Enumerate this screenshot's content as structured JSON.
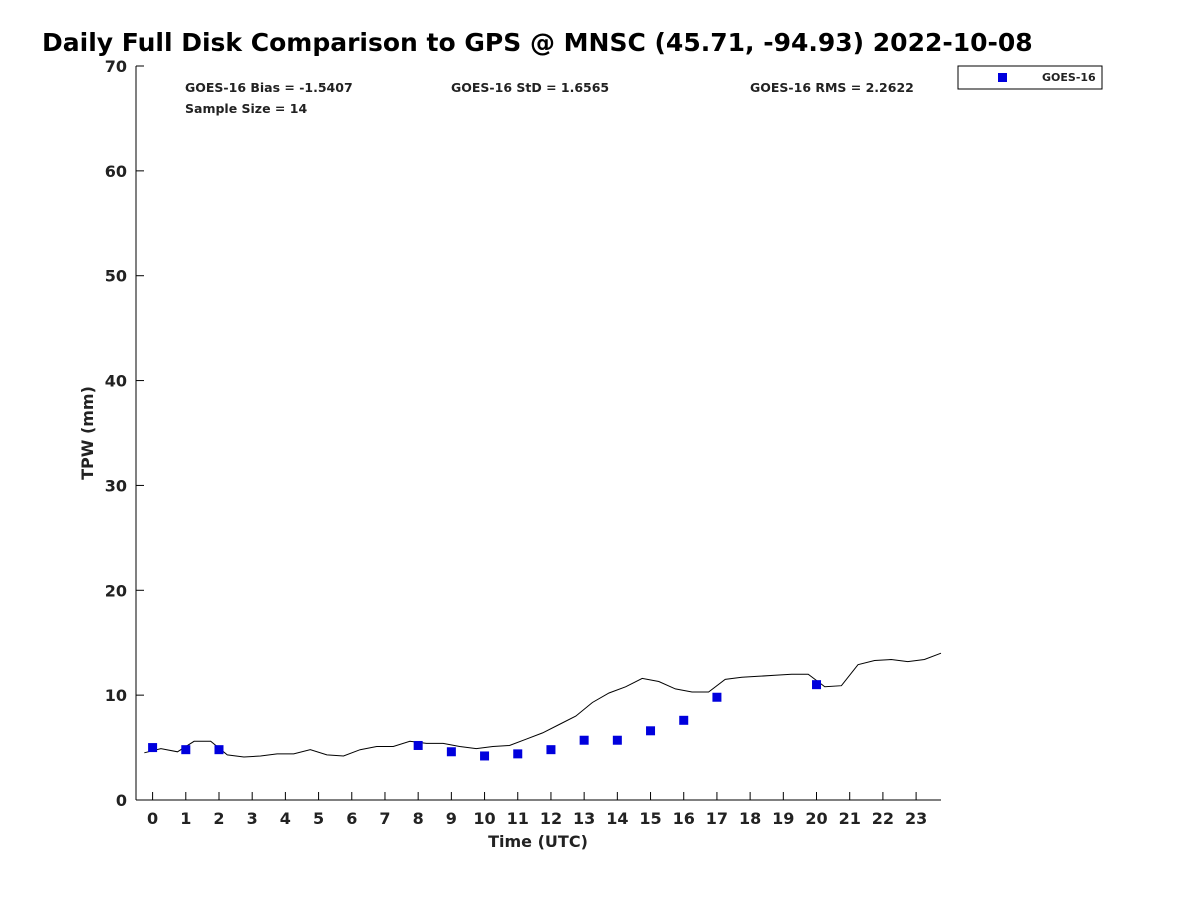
{
  "chart_data": {
    "type": "scatter",
    "title": "Daily Full Disk Comparison to GPS @ MNSC (45.71, -94.93) 2022-10-08",
    "xlabel": "Time (UTC)",
    "ylabel": "TPW (mm)",
    "xlim": [
      -0.5,
      23.75
    ],
    "ylim": [
      0,
      70
    ],
    "xticks": [
      0,
      1,
      2,
      3,
      4,
      5,
      6,
      7,
      8,
      9,
      10,
      11,
      12,
      13,
      14,
      15,
      16,
      17,
      18,
      19,
      20,
      21,
      22,
      23
    ],
    "yticks": [
      0,
      10,
      20,
      30,
      40,
      50,
      60,
      70
    ],
    "stats": {
      "bias": "GOES-16 Bias = -1.5407",
      "std": "GOES-16 StD = 1.6565",
      "rms": "GOES-16 RMS = 2.2622",
      "sample": "Sample Size = 14"
    },
    "legend": {
      "label": "GOES-16",
      "color": "#0000dd",
      "position": "top-right"
    },
    "series": [
      {
        "name": "GOES-16",
        "style": "markers",
        "color": "#0000dd",
        "x": [
          0,
          1,
          2,
          8,
          9,
          10,
          11,
          12,
          13,
          14,
          15,
          16,
          17,
          20
        ],
        "y": [
          5.0,
          4.8,
          4.8,
          5.2,
          4.6,
          4.2,
          4.4,
          4.8,
          5.7,
          5.7,
          6.6,
          7.6,
          9.8,
          11.0
        ]
      },
      {
        "name": "GPS",
        "style": "line",
        "color": "#000000",
        "x": [
          -0.25,
          0.25,
          0.75,
          1.25,
          1.75,
          2.25,
          2.75,
          3.25,
          3.75,
          4.25,
          4.75,
          5.25,
          5.75,
          6.25,
          6.75,
          7.25,
          7.75,
          8.25,
          8.75,
          9.25,
          9.75,
          10.25,
          10.75,
          11.25,
          11.75,
          12.25,
          12.75,
          13.25,
          13.75,
          14.25,
          14.75,
          15.25,
          15.75,
          16.25,
          16.75,
          17.25,
          17.75,
          18.25,
          18.75,
          19.25,
          19.75,
          20.25,
          20.75,
          21.25,
          21.75,
          22.25,
          22.75,
          23.25,
          23.75
        ],
        "y": [
          4.5,
          4.9,
          4.6,
          5.6,
          5.6,
          4.3,
          4.1,
          4.2,
          4.4,
          4.4,
          4.8,
          4.3,
          4.2,
          4.8,
          5.1,
          5.1,
          5.6,
          5.4,
          5.4,
          5.1,
          4.9,
          5.1,
          5.2,
          5.8,
          6.4,
          7.2,
          8.0,
          9.3,
          10.2,
          10.8,
          11.6,
          11.3,
          10.6,
          10.3,
          10.3,
          11.5,
          11.7,
          11.8,
          11.9,
          12.0,
          12.0,
          10.8,
          10.9,
          12.9,
          13.3,
          13.4,
          13.2,
          13.4,
          14.0
        ]
      }
    ]
  }
}
